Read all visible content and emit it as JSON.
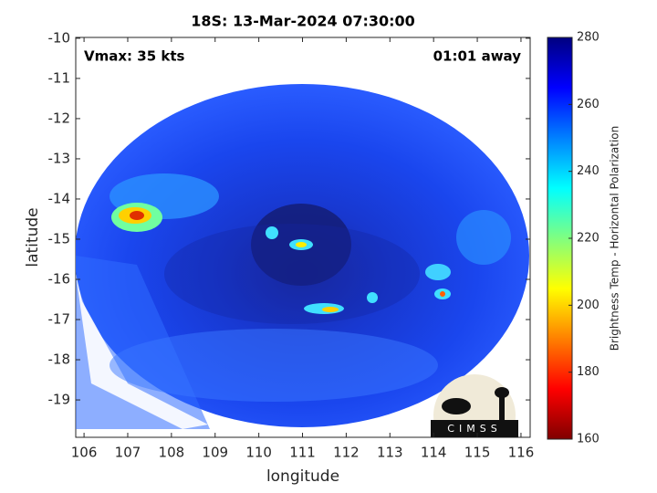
{
  "chart_data": {
    "type": "image",
    "title": "18S: 13-Mar-2024 07:30:00",
    "annotations": [
      "Vmax: 35 kts",
      "01:01 away"
    ],
    "xlabel": "longitude",
    "ylabel": "latitude",
    "xlim": [
      105.81,
      116.21
    ],
    "xticks": [
      106,
      107,
      108,
      109,
      110,
      111,
      112,
      113,
      114,
      115,
      116
    ],
    "ylim": [
      -19.93,
      -9.98
    ],
    "yticks": [
      -10,
      -11,
      -12,
      -13,
      -14,
      -15,
      -16,
      -17,
      -18,
      -19
    ],
    "colorbar": {
      "label": "Brightness Temp - Horizontal Polarization",
      "lim": [
        160,
        280
      ],
      "ticks": [
        160,
        180,
        200,
        220,
        240,
        260,
        280
      ],
      "colormap": [
        "#800000",
        "#ff0000",
        "#ff8000",
        "#ffff00",
        "#80ff80",
        "#00ffff",
        "#0080ff",
        "#0000ff",
        "#000080"
      ]
    },
    "logo": "CIMSS"
  }
}
